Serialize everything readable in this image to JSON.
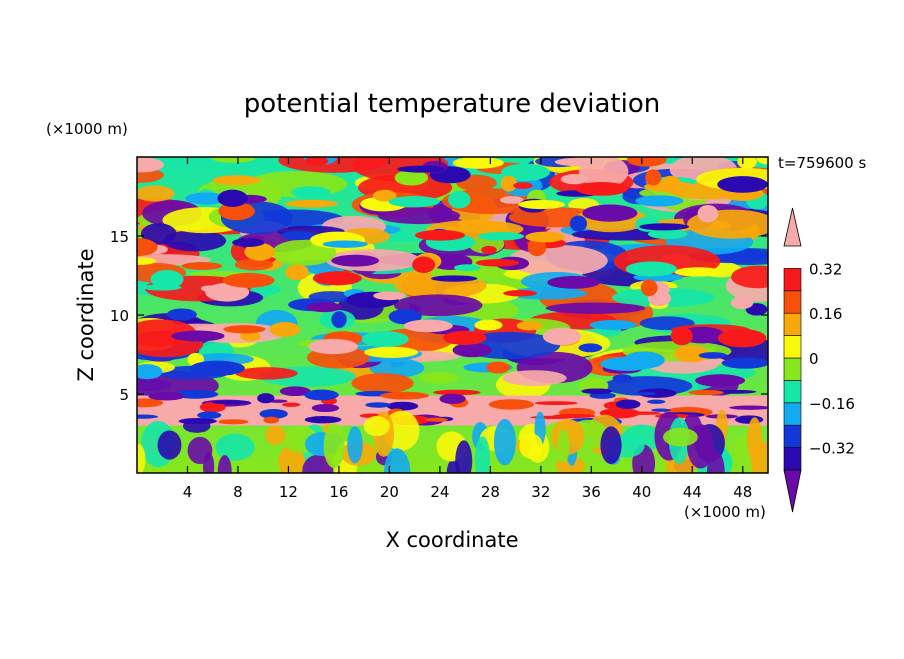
{
  "chart_data": {
    "type": "heatmap",
    "title": "potential temperature deviation",
    "time_label": "t=759600 s",
    "xlabel": "X coordinate",
    "ylabel": "Z coordinate",
    "x_unit": "(×1000 m)",
    "y_unit": "(×1000 m)",
    "xlim": [
      0,
      50
    ],
    "ylim": [
      0,
      20
    ],
    "x_ticks": [
      4,
      8,
      12,
      16,
      20,
      24,
      28,
      32,
      36,
      40,
      44,
      48
    ],
    "y_ticks": [
      5,
      10,
      15
    ],
    "colorbar": {
      "levels": [
        -0.4,
        -0.32,
        -0.24,
        -0.16,
        -0.08,
        0,
        0.08,
        0.16,
        0.24,
        0.32,
        0.4
      ],
      "labels": [
        "0.32",
        "0.16",
        "0",
        "−0.16",
        "−0.32"
      ],
      "label_values": [
        0.32,
        0.16,
        0,
        -0.16,
        -0.32
      ],
      "colors": [
        "#6a0aa8",
        "#2a0ab0",
        "#1238d8",
        "#12aaf0",
        "#16e6a8",
        "#88e61c",
        "#f8f80a",
        "#f8a80a",
        "#f8500a",
        "#f81a1a",
        "#f8aaaa"
      ]
    }
  }
}
